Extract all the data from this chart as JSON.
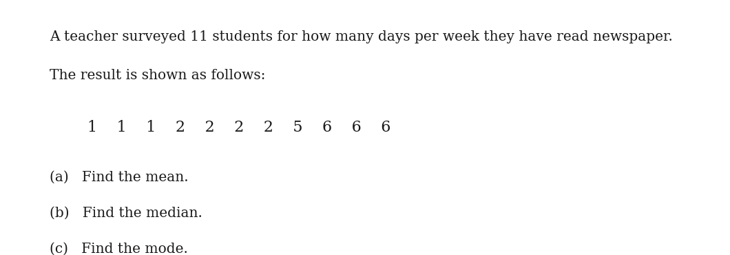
{
  "background_color": "#ffffff",
  "text_color": "#1a1a1a",
  "title_line1": "A teacher surveyed 11 students for how many days per week they have read newspaper.",
  "title_line2": "The result is shown as follows:",
  "data_row": "1    1    1    2    2    2    2    5    6    6    6",
  "question_a": "(a)   Find the mean.",
  "question_b": "(b)   Find the median.",
  "question_c": "(c)   Find the mode.",
  "font_size_title": 14.5,
  "font_size_data": 16,
  "font_size_questions": 14.5,
  "fig_width": 10.6,
  "fig_height": 3.7,
  "dpi": 100
}
